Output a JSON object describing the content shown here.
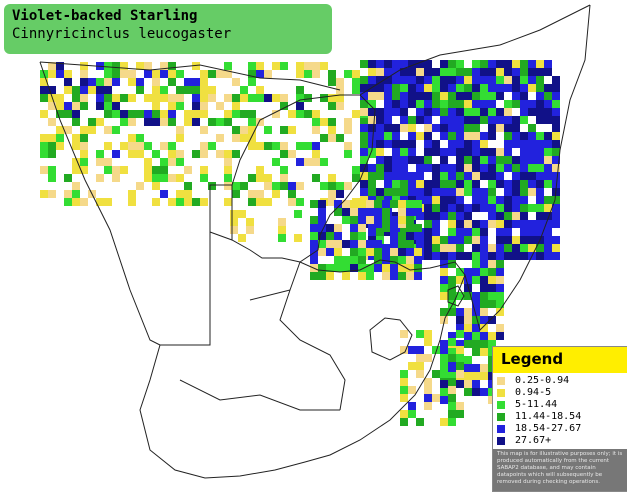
{
  "title": {
    "common_name": "Violet-backed Starling",
    "scientific_name": "Cinnyricinclus leucogaster"
  },
  "legend": {
    "title": "Legend",
    "items": [
      {
        "label": "0.25-0.94",
        "color": "#f5d98a"
      },
      {
        "label": "0.94-5",
        "color": "#f0e040"
      },
      {
        "label": "5-11.44",
        "color": "#33dd33"
      },
      {
        "label": "11.44-18.54",
        "color": "#22aa22"
      },
      {
        "label": "18.54-27.67",
        "color": "#2222dd"
      },
      {
        "label": "27.67+",
        "color": "#111188"
      }
    ],
    "disclaimer": "This map is for illustrative purposes only; it is produced automatically from the current SABAP2 database, and may contain datapoints which will subsequently be removed during checking operations."
  },
  "colors": {
    "title_box": "#66cc66",
    "legend_header": "#ffee00",
    "disclaimer_bg": "#777777",
    "border": "#222222"
  }
}
